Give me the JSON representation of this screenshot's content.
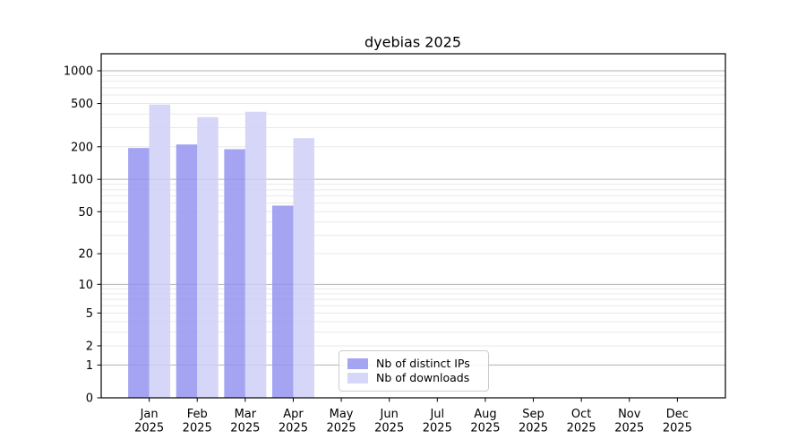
{
  "figure": {
    "title": "dyebias 2025",
    "background": "#ffffff"
  },
  "chart_data": {
    "type": "bar",
    "title": "dyebias 2025",
    "categories": [
      "Jan",
      "Feb",
      "Mar",
      "Apr",
      "May",
      "Jun",
      "Jul",
      "Aug",
      "Sep",
      "Oct",
      "Nov",
      "Dec"
    ],
    "x_sublabel": "2025",
    "series": [
      {
        "name": "Nb of distinct IPs",
        "color": "#9494f0",
        "values": [
          195,
          210,
          190,
          57,
          0,
          0,
          0,
          0,
          0,
          0,
          0,
          0
        ]
      },
      {
        "name": "Nb of downloads",
        "color": "#cfcff7",
        "values": [
          490,
          375,
          420,
          240,
          0,
          0,
          0,
          0,
          0,
          0,
          0,
          0
        ]
      }
    ],
    "bar_opacity": 0.85,
    "yscale": "log10(value+1)",
    "ylim": [
      0,
      1433
    ],
    "yticks": [
      0,
      1,
      2,
      5,
      10,
      20,
      50,
      100,
      200,
      500,
      1000
    ],
    "ygrid_decades": [
      1,
      10,
      100,
      1000
    ],
    "ygrid_minor": [
      2,
      3,
      4,
      5,
      6,
      7,
      8,
      9,
      20,
      30,
      40,
      50,
      60,
      70,
      80,
      90,
      200,
      300,
      400,
      500,
      600,
      700,
      800,
      900
    ],
    "grid": true,
    "legend_position": "inside-bottom-center",
    "colors": {
      "grid_major": "#b3b3b3",
      "grid_minor": "#e9e9e9",
      "axis": "#000000",
      "text": "#000000",
      "legend_border": "#cccccc"
    }
  }
}
